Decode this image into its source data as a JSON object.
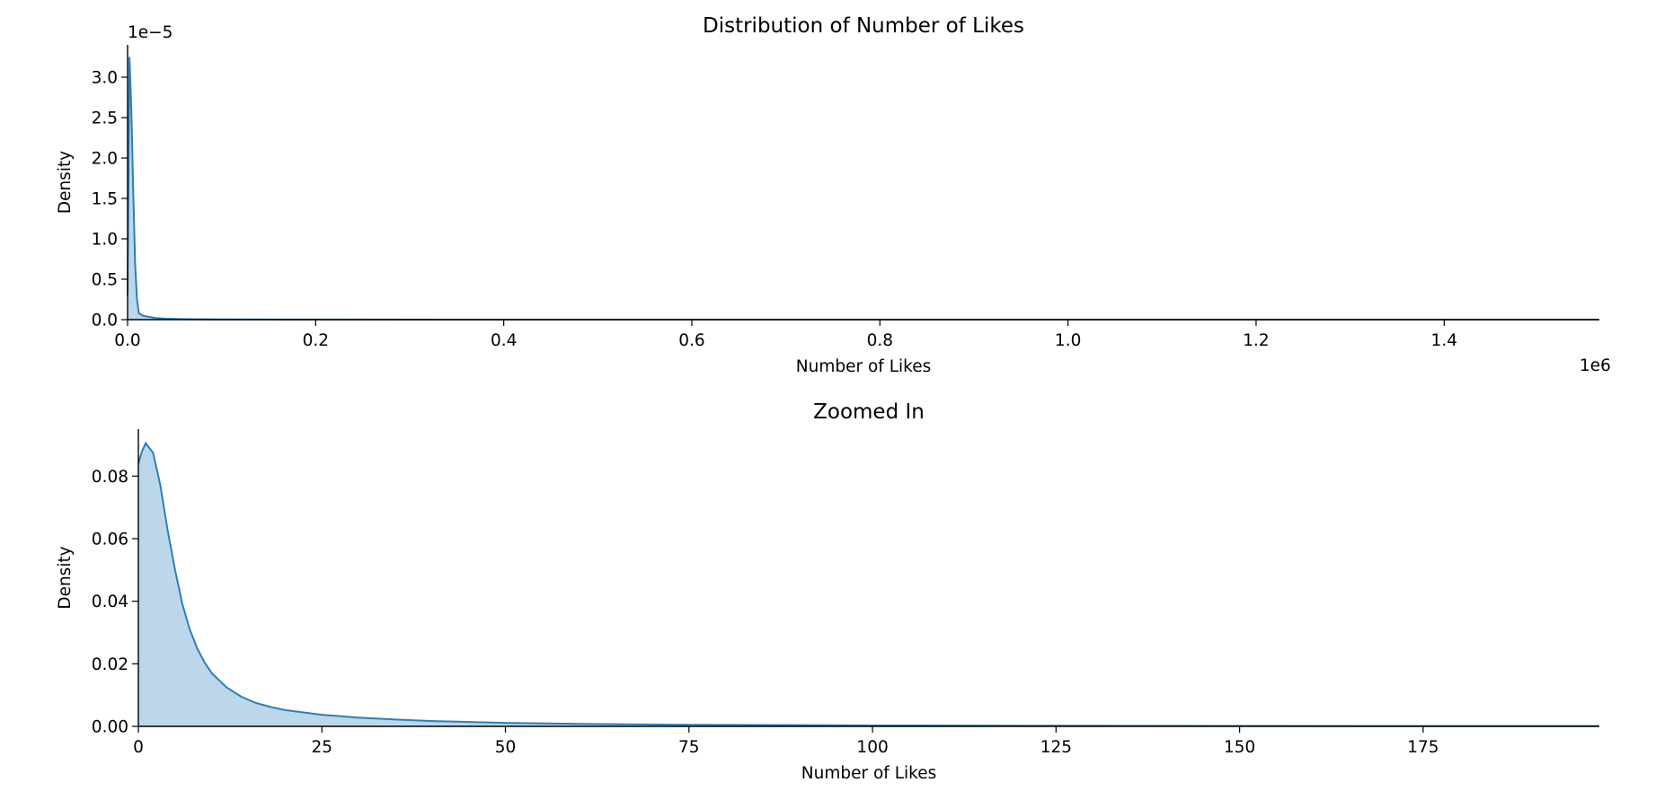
{
  "chart_data": [
    {
      "type": "area",
      "title": "Distribution of Number of Likes",
      "xlabel": "Number of Likes",
      "ylabel": "Density",
      "x_offset_label": "1e6",
      "y_offset_label": "1e−5",
      "xlim": [
        0,
        1.565
      ],
      "ylim": [
        0,
        3.4
      ],
      "x_ticks": [
        0.0,
        0.2,
        0.4,
        0.6,
        0.8,
        1.0,
        1.2,
        1.4
      ],
      "x_tick_labels": [
        "0.0",
        "0.2",
        "0.4",
        "0.6",
        "0.8",
        "1.0",
        "1.2",
        "1.4"
      ],
      "y_ticks": [
        0.0,
        0.5,
        1.0,
        1.5,
        2.0,
        2.5,
        3.0
      ],
      "y_tick_labels": [
        "0.0",
        "0.5",
        "1.0",
        "1.5",
        "2.0",
        "2.5",
        "3.0"
      ],
      "grid": false,
      "line_color": "#2c7fb8",
      "fill_color": "#bcd7ea",
      "series": [
        {
          "x": [
            0,
            0.002,
            0.004,
            0.006,
            0.008,
            0.01,
            0.012,
            0.016,
            0.02,
            0.03,
            0.04,
            0.06,
            0.1,
            0.2,
            0.5,
            1.0,
            1.565
          ],
          "y": [
            0.3,
            3.25,
            2.6,
            1.6,
            0.7,
            0.25,
            0.08,
            0.05,
            0.04,
            0.02,
            0.012,
            0.006,
            0.003,
            0.001,
            0.0,
            0.0,
            0.0
          ]
        }
      ]
    },
    {
      "type": "area",
      "title": "Zoomed In",
      "xlabel": "Number of Likes",
      "ylabel": "Density",
      "xlim": [
        0,
        199
      ],
      "ylim": [
        0,
        0.095
      ],
      "x_ticks": [
        0,
        25,
        50,
        75,
        100,
        125,
        150,
        175
      ],
      "x_tick_labels": [
        "0",
        "25",
        "50",
        "75",
        "100",
        "125",
        "150",
        "175"
      ],
      "y_ticks": [
        0.0,
        0.02,
        0.04,
        0.06,
        0.08
      ],
      "y_tick_labels": [
        "0.00",
        "0.02",
        "0.04",
        "0.06",
        "0.08"
      ],
      "grid": false,
      "line_color": "#2c7fb8",
      "fill_color": "#bcd7ea",
      "series": [
        {
          "x": [
            0,
            0.5,
            1,
            2,
            3,
            4,
            5,
            6,
            7,
            8,
            9,
            10,
            12,
            14,
            16,
            18,
            20,
            25,
            30,
            35,
            40,
            50,
            60,
            75,
            100,
            125,
            150,
            175,
            199
          ],
          "y": [
            0.084,
            0.088,
            0.0905,
            0.0875,
            0.077,
            0.0625,
            0.05,
            0.039,
            0.031,
            0.025,
            0.0205,
            0.017,
            0.0125,
            0.0095,
            0.0075,
            0.0062,
            0.0052,
            0.0037,
            0.0028,
            0.0022,
            0.0017,
            0.0011,
            0.0008,
            0.0005,
            0.0003,
            0.0002,
            0.00015,
            0.0001,
            0.0001
          ]
        }
      ]
    }
  ]
}
